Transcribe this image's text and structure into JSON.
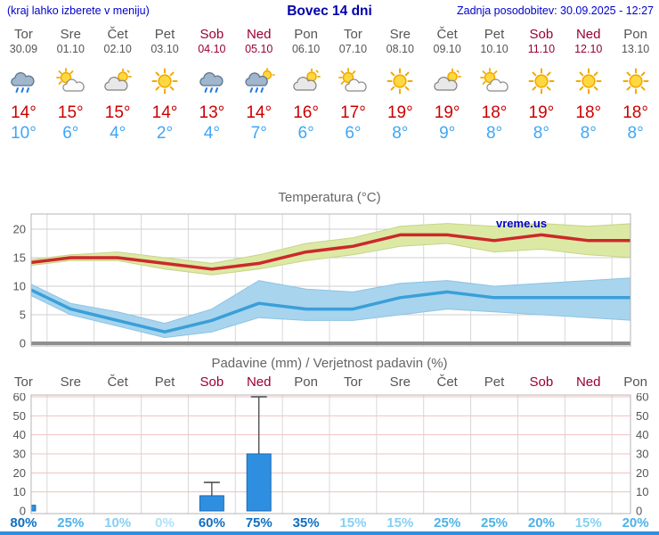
{
  "header": {
    "left_note": "(kraj lahko izberete v meniju)",
    "title": "Bovec 14 dni",
    "updated": "Zadnja posodobitev: 30.09.2025 - 12:27"
  },
  "colors": {
    "accent_blue": "#0000cc",
    "weekend_red": "#990033",
    "tmax_red": "#cc0000",
    "tmin_blue": "#3fa6f5",
    "line_red": "#cc2929",
    "line_blue": "#3a9fd8",
    "band_green": "#dce9a5",
    "band_blue": "#a8d4ee",
    "bar_blue": "#2e8fe0",
    "grid_pink": "#f2c0c0",
    "grid_gray": "#d8d8d8"
  },
  "days": [
    {
      "name": "Tor",
      "date": "30.09",
      "weekend": false,
      "icon": "rain",
      "tmax": "14°",
      "tmin": "10°"
    },
    {
      "name": "Sre",
      "date": "01.10",
      "weekend": false,
      "icon": "partly",
      "tmax": "15°",
      "tmin": "6°"
    },
    {
      "name": "Čet",
      "date": "02.10",
      "weekend": false,
      "icon": "cloudy",
      "tmax": "15°",
      "tmin": "4°"
    },
    {
      "name": "Pet",
      "date": "03.10",
      "weekend": false,
      "icon": "sun",
      "tmax": "14°",
      "tmin": "2°"
    },
    {
      "name": "Sob",
      "date": "04.10",
      "weekend": true,
      "icon": "rain",
      "tmax": "13°",
      "tmin": "4°"
    },
    {
      "name": "Ned",
      "date": "05.10",
      "weekend": true,
      "icon": "rain-sun",
      "tmax": "14°",
      "tmin": "7°"
    },
    {
      "name": "Pon",
      "date": "06.10",
      "weekend": false,
      "icon": "cloudy",
      "tmax": "16°",
      "tmin": "6°"
    },
    {
      "name": "Tor",
      "date": "07.10",
      "weekend": false,
      "icon": "partly",
      "tmax": "17°",
      "tmin": "6°"
    },
    {
      "name": "Sre",
      "date": "08.10",
      "weekend": false,
      "icon": "sun",
      "tmax": "19°",
      "tmin": "8°"
    },
    {
      "name": "Čet",
      "date": "09.10",
      "weekend": false,
      "icon": "cloudy",
      "tmax": "19°",
      "tmin": "9°"
    },
    {
      "name": "Pet",
      "date": "10.10",
      "weekend": false,
      "icon": "partly",
      "tmax": "18°",
      "tmin": "8°"
    },
    {
      "name": "Sob",
      "date": "11.10",
      "weekend": true,
      "icon": "sun",
      "tmax": "19°",
      "tmin": "8°"
    },
    {
      "name": "Ned",
      "date": "12.10",
      "weekend": true,
      "icon": "sun",
      "tmax": "18°",
      "tmin": "8°"
    },
    {
      "name": "Pon",
      "date": "13.10",
      "weekend": false,
      "icon": "sun",
      "tmax": "18°",
      "tmin": "8°"
    }
  ],
  "chart_data": [
    {
      "type": "line",
      "title": "Temperatura (°C)",
      "watermark": "vreme.us",
      "categories": [
        "Tor",
        "Sre",
        "Čet",
        "Pet",
        "Sob",
        "Ned",
        "Pon",
        "Tor",
        "Sre",
        "Čet",
        "Pet",
        "Sob",
        "Ned",
        "Pon"
      ],
      "yticks": [
        0,
        5,
        10,
        15,
        20
      ],
      "ylim": [
        -0.5,
        22.5
      ],
      "grid": true,
      "series": [
        {
          "name": "tmax",
          "values": [
            14,
            15,
            15,
            14,
            13,
            14,
            16,
            17,
            19,
            19,
            18,
            19,
            18,
            18
          ]
        },
        {
          "name": "tmax_upper",
          "values": [
            14.5,
            15.5,
            16,
            15,
            14,
            15.5,
            17.5,
            18.5,
            20.5,
            21,
            20.5,
            21,
            20.5,
            21
          ]
        },
        {
          "name": "tmax_lower",
          "values": [
            13.5,
            14.5,
            14.5,
            13,
            12,
            13,
            14.5,
            15.5,
            17,
            17.5,
            16,
            16.5,
            15.5,
            15
          ]
        },
        {
          "name": "tmin",
          "values": [
            10,
            6,
            4,
            2,
            4,
            7,
            6,
            6,
            8,
            9,
            8,
            8,
            8,
            8
          ]
        },
        {
          "name": "tmin_upper",
          "values": [
            11,
            7,
            5.5,
            3.5,
            6,
            11,
            9.5,
            9,
            10.5,
            11,
            10,
            10.5,
            11,
            11.5
          ]
        },
        {
          "name": "tmin_lower",
          "values": [
            9,
            5,
            3,
            1,
            2,
            4.5,
            4,
            4,
            5,
            6,
            5.5,
            5,
            4.5,
            4
          ]
        }
      ]
    },
    {
      "type": "bar",
      "title": "Padavine (mm) / Verjetnost padavin (%)",
      "categories": [
        "Tor",
        "Sre",
        "Čet",
        "Pet",
        "Sob",
        "Ned",
        "Pon",
        "Tor",
        "Sre",
        "Čet",
        "Pet",
        "Sob",
        "Ned",
        "Pon"
      ],
      "weekend_flags": [
        false,
        false,
        false,
        false,
        true,
        true,
        false,
        false,
        false,
        false,
        false,
        true,
        true,
        false
      ],
      "yticks": [
        0,
        10,
        20,
        30,
        40,
        50,
        60
      ],
      "ylim": [
        0,
        62
      ],
      "bars_mm": [
        3,
        0,
        0,
        0,
        8,
        30,
        0,
        0,
        0,
        0,
        0,
        0,
        0,
        0
      ],
      "bars_max_mm": [
        5,
        0,
        0,
        0,
        15,
        60,
        0,
        0,
        0,
        0,
        0,
        0,
        0,
        0
      ],
      "probabilities": [
        "80%",
        "25%",
        "10%",
        "0%",
        "60%",
        "75%",
        "35%",
        "15%",
        "15%",
        "25%",
        "25%",
        "20%",
        "15%",
        "20%"
      ]
    }
  ]
}
